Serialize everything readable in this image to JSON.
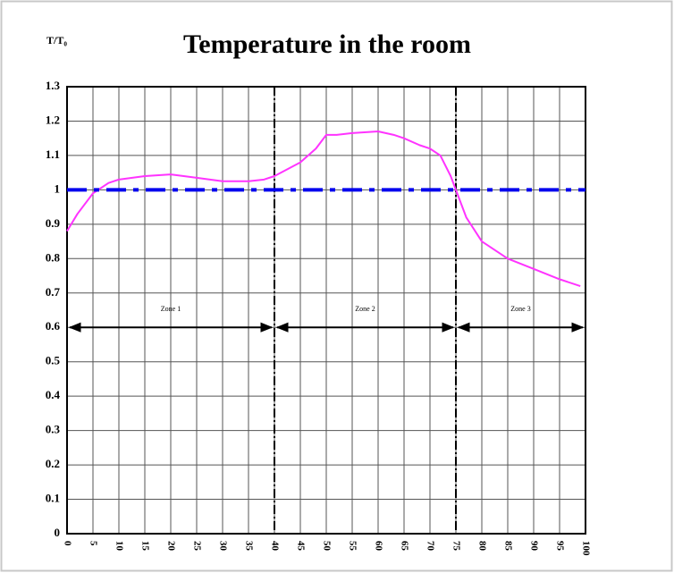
{
  "chart_data": {
    "type": "line",
    "title": "Temperature in the room",
    "ylabel": "T/T₀",
    "xlim": [
      0,
      100
    ],
    "ylim": [
      0,
      1.3
    ],
    "xticks": [
      0,
      5,
      10,
      15,
      20,
      25,
      30,
      35,
      40,
      45,
      50,
      55,
      60,
      65,
      70,
      75,
      80,
      85,
      90,
      95,
      100
    ],
    "yticks": [
      0,
      0.1,
      0.2,
      0.3,
      0.4,
      0.5,
      0.6,
      0.7,
      0.8,
      0.9,
      1,
      1.1,
      1.2,
      1.3
    ],
    "grid": true,
    "series": [
      {
        "color": "#ff33ff",
        "style": "solid",
        "x": [
          0,
          2,
          5,
          8,
          10,
          15,
          20,
          25,
          30,
          35,
          38,
          40,
          45,
          48,
          50,
          52,
          55,
          60,
          63,
          65,
          68,
          70,
          72,
          74,
          75,
          77,
          80,
          85,
          90,
          95,
          99
        ],
        "values": [
          0.88,
          0.93,
          0.99,
          1.02,
          1.03,
          1.04,
          1.045,
          1.035,
          1.025,
          1.025,
          1.03,
          1.04,
          1.08,
          1.12,
          1.16,
          1.16,
          1.165,
          1.17,
          1.16,
          1.15,
          1.13,
          1.12,
          1.1,
          1.04,
          1.0,
          0.92,
          0.85,
          0.8,
          0.77,
          0.74,
          0.72
        ]
      },
      {
        "color": "#0000ee",
        "style": "dashdot",
        "x": [
          0,
          100
        ],
        "values": [
          1.0,
          1.0
        ]
      }
    ],
    "zone_y": 0.6,
    "zones": [
      {
        "label": "Zone 1",
        "range": [
          0,
          40
        ]
      },
      {
        "label": "Zone 2",
        "range": [
          40,
          75
        ]
      },
      {
        "label": "Zone 3",
        "range": [
          75,
          100
        ]
      }
    ]
  }
}
